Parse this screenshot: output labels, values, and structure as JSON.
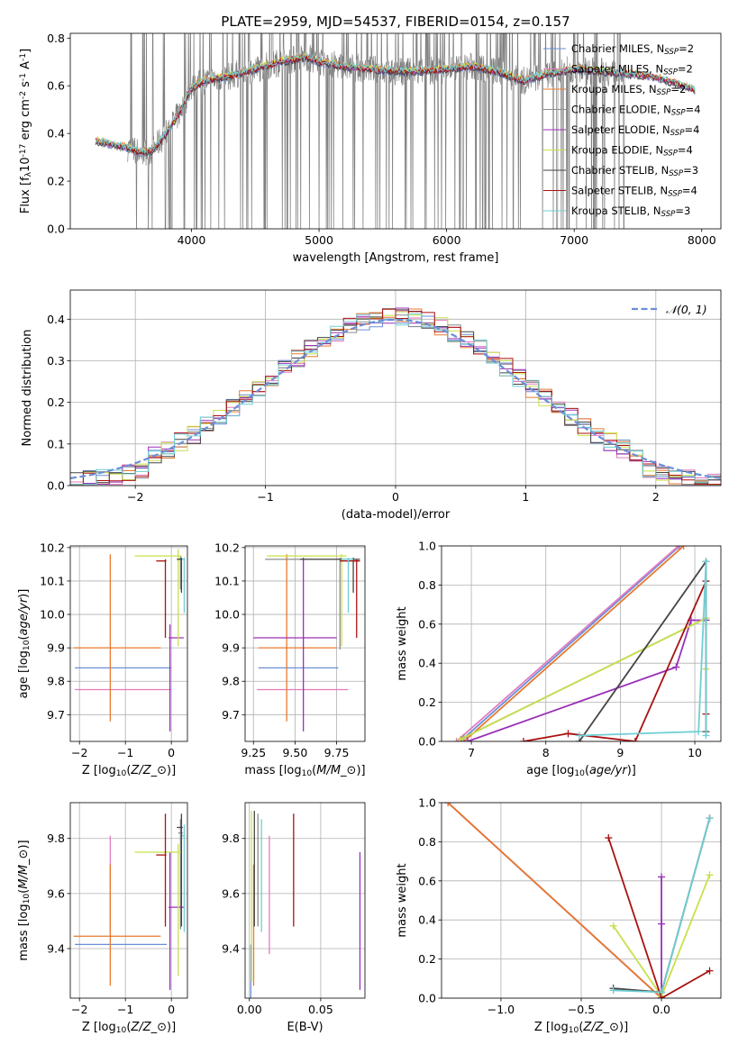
{
  "colors": {
    "Chabrier MILES": "#6a8fd8",
    "Salpeter MILES": "#e27bc0",
    "Kroupa MILES": "#e8792e",
    "Chabrier ELODIE": "#8c8c8c",
    "Salpeter ELODIE": "#9a30b8",
    "Kroupa ELODIE": "#c8e04a",
    "Chabrier STELIB": "#444444",
    "Salpeter STELIB": "#aa1111",
    "Kroupa STELIB": "#6fcfd4",
    "gauss": "#6a8fd8",
    "data": "#808080"
  },
  "chart_data": [
    {
      "id": "spectrum",
      "type": "line",
      "title": "PLATE=2959, MJD=54537, FIBERID=0154, z=0.157",
      "xlabel": "wavelength [Angstrom, rest frame]",
      "ylabel": "Flux [f$_\\lambda$10$^{-17}$ erg cm$^{-2}$ s$^{-1}$ A$^{-1}$]",
      "xlim": [
        3050,
        8150
      ],
      "ylim": [
        0,
        0.82
      ],
      "xticks": [
        "4000",
        "5000",
        "6000",
        "7000",
        "8000"
      ],
      "yticks": [
        "0.0",
        "0.2",
        "0.4",
        "0.6",
        "0.8"
      ],
      "grid": false,
      "legend": "top-right",
      "legend_entries": [
        {
          "label": "Chabrier MILES, N",
          "sub": "SSP",
          "suffix": "=2"
        },
        {
          "label": "Salpeter MILES, N",
          "sub": "SSP",
          "suffix": "=2"
        },
        {
          "label": "Kroupa MILES, N",
          "sub": "SSP",
          "suffix": "=2"
        },
        {
          "label": "Chabrier ELODIE, N",
          "sub": "SSP",
          "suffix": "=4"
        },
        {
          "label": "Salpeter ELODIE, N",
          "sub": "SSP",
          "suffix": "=4"
        },
        {
          "label": "Kroupa ELODIE, N",
          "sub": "SSP",
          "suffix": "=4"
        },
        {
          "label": "Chabrier STELIB, N",
          "sub": "SSP",
          "suffix": "=3"
        },
        {
          "label": "Salpeter STELIB, N",
          "sub": "SSP",
          "suffix": "=4"
        },
        {
          "label": "Kroupa STELIB, N",
          "sub": "SSP",
          "suffix": "=3"
        }
      ],
      "continuum_x": [
        3250,
        3400,
        3500,
        3600,
        3700,
        3800,
        3900,
        4000,
        4100,
        4300,
        4500,
        4700,
        4900,
        5000,
        5200,
        5400,
        5600,
        5800,
        6000,
        6200,
        6400,
        6600,
        6800,
        7000,
        7200,
        7400,
        7600,
        7800,
        7950
      ],
      "continuum_y": [
        0.37,
        0.35,
        0.34,
        0.32,
        0.33,
        0.4,
        0.48,
        0.59,
        0.62,
        0.64,
        0.67,
        0.7,
        0.72,
        0.7,
        0.68,
        0.67,
        0.66,
        0.66,
        0.67,
        0.68,
        0.66,
        0.62,
        0.65,
        0.67,
        0.66,
        0.65,
        0.64,
        0.61,
        0.58
      ],
      "data_range": [
        3500,
        7400
      ]
    },
    {
      "id": "residuals",
      "type": "histogram",
      "xlabel": "(data-model)/error",
      "ylabel": "Normed distribution",
      "xlim": [
        -2.5,
        2.5
      ],
      "ylim": [
        0,
        0.47
      ],
      "xticks": [
        "−2",
        "−1",
        "0",
        "1",
        "2"
      ],
      "yticks": [
        "0.0",
        "0.1",
        "0.2",
        "0.3",
        "0.4"
      ],
      "grid": true,
      "legend": "top-right",
      "legend_label": "𝒩(0, 1)",
      "bin_width": 0.1,
      "bin_centers": [
        -2.45,
        -2.35,
        -2.25,
        -2.15,
        -2.05,
        -1.95,
        -1.85,
        -1.75,
        -1.65,
        -1.55,
        -1.45,
        -1.35,
        -1.25,
        -1.15,
        -1.05,
        -0.95,
        -0.85,
        -0.75,
        -0.65,
        -0.55,
        -0.45,
        -0.35,
        -0.25,
        -0.15,
        -0.05,
        0.05,
        0.15,
        0.25,
        0.35,
        0.45,
        0.55,
        0.65,
        0.75,
        0.85,
        0.95,
        1.05,
        1.15,
        1.25,
        1.35,
        1.45,
        1.55,
        1.65,
        1.75,
        1.85,
        1.95,
        2.05,
        2.15,
        2.25,
        2.35,
        2.45
      ],
      "gauss_mean": 0,
      "gauss_sigma": 1
    },
    {
      "id": "age_vs_Z",
      "type": "errorbar",
      "xlabel": "Z [log$_{10}$($Z/Z_\\odot$)]",
      "ylabel": "age  [log$_{10}$($age/yr$)]",
      "xlim": [
        -2.2,
        0.35
      ],
      "ylim": [
        9.62,
        10.205
      ],
      "xticks": [
        "−2",
        "−1",
        "0"
      ],
      "yticks": [
        "9.7",
        "9.8",
        "9.9",
        "10.0",
        "10.1",
        "10.2"
      ],
      "grid": true,
      "points": [
        {
          "model": "Chabrier MILES",
          "x": -0.6,
          "y": 9.84,
          "xerr": [
            1.5,
            0.6
          ],
          "yerr": [
            0,
            0
          ]
        },
        {
          "model": "Salpeter MILES",
          "x": -0.6,
          "y": 9.775,
          "xerr": [
            1.5,
            0.6
          ],
          "yerr": [
            0,
            0
          ]
        },
        {
          "model": "Kroupa MILES",
          "x": -1.33,
          "y": 9.9,
          "xerr": [
            0.8,
            1.1
          ],
          "yerr": [
            0.22,
            0.28
          ]
        },
        {
          "model": "Chabrier ELODIE",
          "x": 0.2,
          "y": 10.165,
          "xerr": [
            0.05,
            0.05
          ],
          "yerr": [
            0.09,
            0.01
          ]
        },
        {
          "model": "Salpeter ELODIE",
          "x": -0.03,
          "y": 9.93,
          "xerr": [
            0.03,
            0.3
          ],
          "yerr": [
            0.28,
            0.04
          ]
        },
        {
          "model": "Kroupa ELODIE",
          "x": 0.15,
          "y": 10.175,
          "xerr": [
            0.95,
            0.08
          ],
          "yerr": [
            0.27,
            0.02
          ]
        },
        {
          "model": "Chabrier STELIB",
          "x": 0.22,
          "y": 10.165,
          "xerr": [
            0.1,
            0.03
          ],
          "yerr": [
            0.1,
            0.005
          ]
        },
        {
          "model": "Salpeter STELIB",
          "x": -0.13,
          "y": 10.16,
          "xerr": [
            0.2,
            0.02
          ],
          "yerr": [
            0.23,
            0.005
          ]
        },
        {
          "model": "Kroupa STELIB",
          "x": 0.28,
          "y": 10.165,
          "xerr": [
            0.05,
            0.02
          ],
          "yerr": [
            0.16,
            0.005
          ]
        }
      ]
    },
    {
      "id": "age_vs_mass",
      "type": "errorbar",
      "xlabel": "mass [log$_{10}$($M/M_\\odot$)]",
      "xlim": [
        9.2,
        9.92
      ],
      "ylim": [
        9.62,
        10.205
      ],
      "xticks": [
        "9.25",
        "9.50",
        "9.75"
      ],
      "yticks": [
        "9.7",
        "9.8",
        "9.9",
        "10.0",
        "10.1",
        "10.2"
      ],
      "grid": true,
      "points": [
        {
          "model": "Chabrier MILES",
          "x": 9.42,
          "y": 9.84,
          "xerr": [
            0.14,
            0.34
          ],
          "yerr": [
            0,
            0
          ]
        },
        {
          "model": "Salpeter MILES",
          "x": 9.45,
          "y": 9.775,
          "xerr": [
            0.18,
            0.37
          ],
          "yerr": [
            0,
            0
          ]
        },
        {
          "model": "Kroupa MILES",
          "x": 9.45,
          "y": 9.9,
          "xerr": [
            0.17,
            0.3
          ],
          "yerr": [
            0.22,
            0.28
          ]
        },
        {
          "model": "Chabrier ELODIE",
          "x": 9.77,
          "y": 10.165,
          "xerr": [
            0.45,
            0.02
          ],
          "yerr": [
            0.27,
            0.005
          ]
        },
        {
          "model": "Salpeter ELODIE",
          "x": 9.55,
          "y": 9.93,
          "xerr": [
            0.3,
            0.2
          ],
          "yerr": [
            0.28,
            0.24
          ]
        },
        {
          "model": "Kroupa ELODIE",
          "x": 9.78,
          "y": 10.175,
          "xerr": [
            0.45,
            0.03
          ],
          "yerr": [
            0.27,
            0.005
          ]
        },
        {
          "model": "Chabrier STELIB",
          "x": 9.85,
          "y": 10.165,
          "xerr": [
            0.32,
            0.04
          ],
          "yerr": [
            0.1,
            0.005
          ]
        },
        {
          "model": "Salpeter STELIB",
          "x": 9.87,
          "y": 10.16,
          "xerr": [
            0.1,
            0.02
          ],
          "yerr": [
            0.23,
            0.005
          ]
        },
        {
          "model": "Kroupa STELIB",
          "x": 9.82,
          "y": 10.165,
          "xerr": [
            0.04,
            0.03
          ],
          "yerr": [
            0.16,
            0.005
          ]
        }
      ]
    },
    {
      "id": "massweight_vs_age",
      "type": "line",
      "xlabel": "age  [log$_{10}$($age/yr$)]",
      "ylabel": "mass weight",
      "xlim": [
        6.6,
        10.35
      ],
      "ylim": [
        0,
        1
      ],
      "xticks": [
        "7",
        "8",
        "9",
        "10"
      ],
      "yticks": [
        "0.0",
        "0.2",
        "0.4",
        "0.6",
        "0.8",
        "1.0"
      ],
      "grid": true,
      "series": [
        {
          "model": "Chabrier MILES",
          "x": [
            6.85,
            9.8
          ],
          "y": [
            0,
            1
          ]
        },
        {
          "model": "Salpeter MILES",
          "x": [
            6.8,
            9.78
          ],
          "y": [
            0,
            1
          ]
        },
        {
          "model": "Kroupa MILES",
          "x": [
            6.9,
            9.85
          ],
          "y": [
            0,
            1
          ]
        },
        {
          "model": "Chabrier ELODIE",
          "x": [
            6.9,
            10.15
          ],
          "y": [
            0.02,
            0.63
          ]
        },
        {
          "model": "Salpeter ELODIE",
          "x": [
            6.95,
            9.75,
            9.95,
            10.15
          ],
          "y": [
            0.0,
            0.38,
            0.62,
            0.62
          ]
        },
        {
          "model": "Kroupa ELODIE",
          "x": [
            6.85,
            10.15,
            10.15
          ],
          "y": [
            0.01,
            0.63,
            0.37
          ]
        },
        {
          "model": "Chabrier STELIB",
          "x": [
            8.45,
            10.15,
            10.15
          ],
          "y": [
            0.0,
            0.92,
            0.05
          ]
        },
        {
          "model": "Salpeter STELIB",
          "x": [
            7.7,
            8.3,
            9.2,
            10.15,
            10.15
          ],
          "y": [
            0.0,
            0.04,
            0.0,
            0.82,
            0.14
          ]
        },
        {
          "model": "Kroupa STELIB",
          "x": [
            8.45,
            10.05,
            10.15,
            10.15
          ],
          "y": [
            0.03,
            0.05,
            0.92,
            0.03
          ]
        }
      ]
    },
    {
      "id": "mass_vs_Z",
      "type": "errorbar",
      "xlabel": "Z [log$_{10}$($Z/Z_\\odot$)]",
      "ylabel": "mass [log$_{10}$($M/M_\\odot$)]",
      "xlim": [
        -2.2,
        0.35
      ],
      "ylim": [
        9.22,
        9.93
      ],
      "xticks": [
        "−2",
        "−1",
        "0"
      ],
      "yticks": [
        "9.4",
        "9.6",
        "9.8"
      ],
      "grid": true,
      "points": [
        {
          "model": "Chabrier MILES",
          "x": -1.0,
          "y": 9.415,
          "xerr": [
            1.1,
            0.9
          ],
          "yerr": [
            0.0,
            0.0
          ]
        },
        {
          "model": "Salpeter MILES",
          "x": -1.33,
          "y": 9.445,
          "xerr": [
            0.0,
            0.0
          ],
          "yerr": [
            0.0,
            0.365
          ]
        },
        {
          "model": "Kroupa MILES",
          "x": -1.33,
          "y": 9.445,
          "xerr": [
            0.8,
            1.1
          ],
          "yerr": [
            0.18,
            0.26
          ]
        },
        {
          "model": "Chabrier ELODIE",
          "x": 0.2,
          "y": 9.82,
          "xerr": [
            0.05,
            0.05
          ],
          "yerr": [
            0.35,
            0.05
          ]
        },
        {
          "model": "Salpeter ELODIE",
          "x": -0.03,
          "y": 9.55,
          "xerr": [
            0.03,
            0.3
          ],
          "yerr": [
            0.3,
            0.2
          ]
        },
        {
          "model": "Kroupa ELODIE",
          "x": 0.15,
          "y": 9.75,
          "xerr": [
            0.95,
            0.08
          ],
          "yerr": [
            0.45,
            0.03
          ]
        },
        {
          "model": "Chabrier STELIB",
          "x": 0.22,
          "y": 9.84,
          "xerr": [
            0.1,
            0.03
          ],
          "yerr": [
            0.36,
            0.05
          ]
        },
        {
          "model": "Salpeter STELIB",
          "x": -0.13,
          "y": 9.74,
          "xerr": [
            0.2,
            0.02
          ],
          "yerr": [
            0.26,
            0.15
          ]
        },
        {
          "model": "Kroupa STELIB",
          "x": 0.28,
          "y": 9.81,
          "xerr": [
            0.05,
            0.02
          ],
          "yerr": [
            0.35,
            0.04
          ]
        }
      ]
    },
    {
      "id": "mass_vs_ebv",
      "type": "errorbar",
      "xlabel": "E(B-V)",
      "xlim": [
        -0.003,
        0.081
      ],
      "ylim": [
        9.22,
        9.93
      ],
      "xticks": [
        "0.00",
        "0.05"
      ],
      "yticks": [
        "9.4",
        "9.6",
        "9.8"
      ],
      "grid": true,
      "points": [
        {
          "model": "Chabrier MILES",
          "x": 0.001,
          "y": 9.415,
          "xerr": [
            0,
            0
          ],
          "yerr": [
            0.2,
            0.0
          ]
        },
        {
          "model": "Salpeter MILES",
          "x": 0.014,
          "y": 9.445,
          "xerr": [
            0,
            0
          ],
          "yerr": [
            0.065,
            0.365
          ]
        },
        {
          "model": "Kroupa MILES",
          "x": 0.003,
          "y": 9.445,
          "xerr": [
            0,
            0
          ],
          "yerr": [
            0.18,
            0.26
          ]
        },
        {
          "model": "Chabrier ELODIE",
          "x": 0.006,
          "y": 9.82,
          "xerr": [
            0,
            0
          ],
          "yerr": [
            0.34,
            0.07
          ]
        },
        {
          "model": "Salpeter ELODIE",
          "x": 0.0775,
          "y": 9.55,
          "xerr": [
            0,
            0
          ],
          "yerr": [
            0.3,
            0.2
          ]
        },
        {
          "model": "Kroupa ELODIE",
          "x": 0.0015,
          "y": 9.75,
          "xerr": [
            0,
            0
          ],
          "yerr": [
            0.47,
            0.15
          ]
        },
        {
          "model": "Chabrier STELIB",
          "x": 0.0035,
          "y": 9.84,
          "xerr": [
            0,
            0
          ],
          "yerr": [
            0.36,
            0.06
          ]
        },
        {
          "model": "Salpeter STELIB",
          "x": 0.031,
          "y": 9.74,
          "xerr": [
            0,
            0
          ],
          "yerr": [
            0.26,
            0.15
          ]
        },
        {
          "model": "Kroupa STELIB",
          "x": 0.0085,
          "y": 9.81,
          "xerr": [
            0,
            0
          ],
          "yerr": [
            0.35,
            0.06
          ]
        }
      ]
    },
    {
      "id": "massweight_vs_Z",
      "type": "line",
      "xlabel": "Z [log$_{10}$($Z/Z_\\odot$)]",
      "ylabel": "mass weight",
      "xlim": [
        -1.37,
        0.37
      ],
      "ylim": [
        0,
        1
      ],
      "xticks": [
        "−1.0",
        "−0.5",
        "0.0"
      ],
      "yticks": [
        "0.0",
        "0.2",
        "0.4",
        "0.6",
        "0.8",
        "1.0"
      ],
      "grid": true,
      "series": [
        {
          "model": "Chabrier MILES",
          "x": [
            -1.33,
            0.0
          ],
          "y": [
            1.0,
            0.0
          ]
        },
        {
          "model": "Salpeter MILES",
          "x": [
            -1.33,
            0.0
          ],
          "y": [
            1.0,
            0.0
          ]
        },
        {
          "model": "Kroupa MILES",
          "x": [
            -1.33,
            0.0
          ],
          "y": [
            1.0,
            0.0
          ]
        },
        {
          "model": "Chabrier ELODIE",
          "x": [
            -0.3,
            0.0,
            0.3
          ],
          "y": [
            0.05,
            0.03,
            0.92
          ]
        },
        {
          "model": "Salpeter ELODIE",
          "x": [
            0.0,
            0.0,
            0.0
          ],
          "y": [
            0.62,
            0.38,
            0.0
          ]
        },
        {
          "model": "Kroupa ELODIE",
          "x": [
            -0.3,
            0.0,
            0.3
          ],
          "y": [
            0.37,
            0.01,
            0.63
          ]
        },
        {
          "model": "Chabrier STELIB",
          "x": [
            -0.3,
            0.0,
            0.3
          ],
          "y": [
            0.05,
            0.03,
            0.92
          ]
        },
        {
          "model": "Salpeter STELIB",
          "x": [
            -0.33,
            0.0,
            0.3
          ],
          "y": [
            0.82,
            0.0,
            0.14
          ]
        },
        {
          "model": "Kroupa STELIB",
          "x": [
            -0.3,
            0.0,
            0.3
          ],
          "y": [
            0.04,
            0.03,
            0.92
          ]
        }
      ]
    }
  ]
}
